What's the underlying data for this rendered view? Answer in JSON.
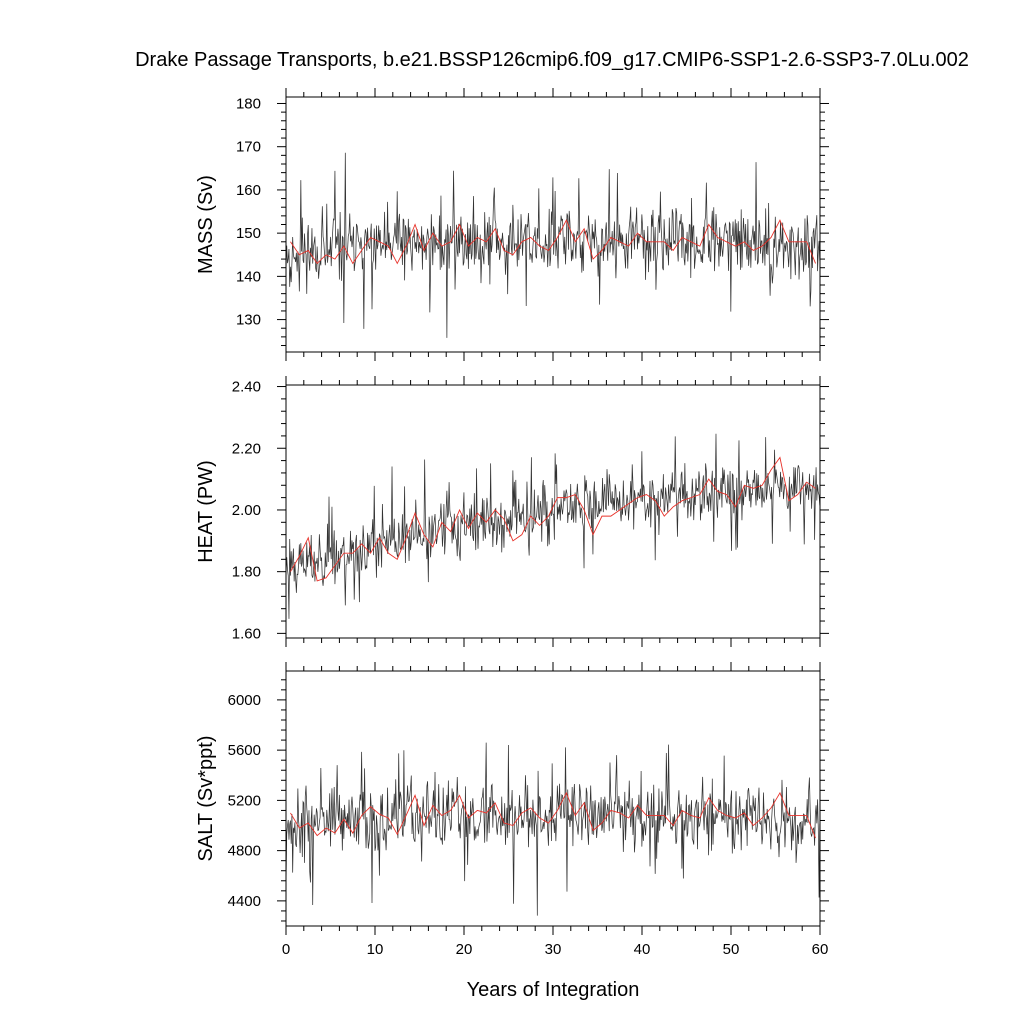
{
  "title": "Drake Passage Transports, b.e21.BSSP126cmip6.f09_g17.CMIP6-SSP1-2.6-SSP3-7.0Lu.002",
  "xlabel": "Years of Integration",
  "colors": {
    "monthly": "#333333",
    "annual": "#e8322a",
    "frame": "#000000"
  },
  "chart_data": [
    {
      "type": "line",
      "panel": "mass",
      "ylabel": "MASS (Sv)",
      "xlim": [
        0,
        60
      ],
      "ylim": [
        122.5,
        181.5
      ],
      "xticks": [
        0,
        10,
        20,
        30,
        40,
        50,
        60
      ],
      "yticks": [
        130,
        140,
        150,
        160,
        170,
        180
      ],
      "ytick_labels": [
        "130",
        "140",
        "150",
        "160",
        "170",
        "180"
      ],
      "series": [
        {
          "style": "monthly",
          "x_step": 0.0833,
          "noise": 7.5,
          "spike_chance": 0.06,
          "spike_amp": 14,
          "seed": 11,
          "x": [
            0,
            10,
            20,
            30,
            40,
            50,
            60
          ],
          "values": [
            146,
            147,
            148,
            148,
            148,
            148,
            146
          ]
        },
        {
          "style": "annual",
          "x": [
            0.5,
            1.5,
            2.5,
            3.5,
            4.5,
            5.5,
            6.5,
            7.5,
            8.5,
            9.5,
            10.5,
            11.5,
            12.5,
            13.5,
            14.5,
            15.5,
            16.5,
            17.5,
            18.5,
            19.5,
            20.5,
            21.5,
            22.5,
            23.5,
            24.5,
            25.5,
            26.5,
            27.5,
            28.5,
            29.5,
            30.5,
            31.5,
            32.5,
            33.5,
            34.5,
            35.5,
            36.5,
            37.5,
            38.5,
            39.5,
            40.5,
            41.5,
            42.5,
            43.5,
            44.5,
            45.5,
            46.5,
            47.5,
            48.5,
            49.5,
            50.5,
            51.5,
            52.5,
            53.5,
            54.5,
            55.5,
            56.5,
            57.5,
            58.5,
            59.5
          ],
          "values": [
            148,
            145,
            146,
            143,
            145,
            144,
            147,
            143,
            146,
            149,
            148,
            147,
            143,
            147,
            152,
            146,
            150,
            147,
            148,
            152,
            147,
            149,
            148,
            151,
            146,
            145,
            148,
            149,
            147,
            146,
            149,
            153,
            148,
            151,
            144,
            146,
            149,
            148,
            147,
            150,
            148,
            148,
            148,
            146,
            149,
            148,
            147,
            152,
            149,
            148,
            147,
            148,
            146,
            147,
            149,
            153,
            148,
            148,
            148,
            143
          ]
        }
      ]
    },
    {
      "type": "line",
      "panel": "heat",
      "ylabel": "HEAT (PW)",
      "xlim": [
        0,
        60
      ],
      "ylim": [
        1.585,
        2.405
      ],
      "xticks": [
        0,
        10,
        20,
        30,
        40,
        50,
        60
      ],
      "yticks": [
        1.6,
        1.8,
        2.0,
        2.2,
        2.4
      ],
      "ytick_labels": [
        "1.60",
        "1.80",
        "2.00",
        "2.20",
        "2.40"
      ],
      "series": [
        {
          "style": "monthly",
          "x_step": 0.0833,
          "noise": 0.09,
          "spike_chance": 0.05,
          "spike_amp": 0.16,
          "seed": 23,
          "x": [
            0,
            10,
            20,
            30,
            40,
            50,
            60
          ],
          "values": [
            1.82,
            1.88,
            1.95,
            2.0,
            2.03,
            2.07,
            2.08
          ]
        },
        {
          "style": "annual",
          "x": [
            0.5,
            1.5,
            2.5,
            3.5,
            4.5,
            5.5,
            6.5,
            7.5,
            8.5,
            9.5,
            10.5,
            11.5,
            12.5,
            13.5,
            14.5,
            15.5,
            16.5,
            17.5,
            18.5,
            19.5,
            20.5,
            21.5,
            22.5,
            23.5,
            24.5,
            25.5,
            26.5,
            27.5,
            28.5,
            29.5,
            30.5,
            31.5,
            32.5,
            33.5,
            34.5,
            35.5,
            36.5,
            37.5,
            38.5,
            39.5,
            40.5,
            41.5,
            42.5,
            43.5,
            44.5,
            45.5,
            46.5,
            47.5,
            48.5,
            49.5,
            50.5,
            51.5,
            52.5,
            53.5,
            54.5,
            55.5,
            56.5,
            57.5,
            58.5,
            59.5
          ],
          "values": [
            1.8,
            1.85,
            1.91,
            1.77,
            1.78,
            1.82,
            1.86,
            1.86,
            1.89,
            1.86,
            1.91,
            1.86,
            1.84,
            1.91,
            1.99,
            1.92,
            1.88,
            1.96,
            1.93,
            2.0,
            1.94,
            1.99,
            1.96,
            2.0,
            1.97,
            1.9,
            1.92,
            1.98,
            1.95,
            1.98,
            2.04,
            2.04,
            2.05,
            2.0,
            1.92,
            1.98,
            1.98,
            2.0,
            2.02,
            2.04,
            2.05,
            2.03,
            1.98,
            2.01,
            2.03,
            2.04,
            2.05,
            2.1,
            2.06,
            2.05,
            2.01,
            2.08,
            2.07,
            2.08,
            2.13,
            2.17,
            2.03,
            2.05,
            2.09,
            2.07
          ]
        }
      ]
    },
    {
      "type": "line",
      "panel": "salt",
      "ylabel": "SALT (Sv*ppt)",
      "xlim": [
        0,
        60
      ],
      "ylim": [
        4200,
        6230
      ],
      "xticks": [
        0,
        10,
        20,
        30,
        40,
        50,
        60
      ],
      "yticks": [
        4400,
        4800,
        5200,
        5600,
        6000
      ],
      "ytick_labels": [
        "4400",
        "4800",
        "5200",
        "5600",
        "6000"
      ],
      "series": [
        {
          "style": "monthly",
          "x_step": 0.0833,
          "noise": 260,
          "spike_chance": 0.06,
          "spike_amp": 480,
          "seed": 37,
          "x": [
            0,
            10,
            20,
            30,
            40,
            50,
            60
          ],
          "values": [
            5020,
            5050,
            5080,
            5090,
            5080,
            5090,
            5020
          ]
        },
        {
          "style": "annual",
          "x": [
            0.5,
            1.5,
            2.5,
            3.5,
            4.5,
            5.5,
            6.5,
            7.5,
            8.5,
            9.5,
            10.5,
            11.5,
            12.5,
            13.5,
            14.5,
            15.5,
            16.5,
            17.5,
            18.5,
            19.5,
            20.5,
            21.5,
            22.5,
            23.5,
            24.5,
            25.5,
            26.5,
            27.5,
            28.5,
            29.5,
            30.5,
            31.5,
            32.5,
            33.5,
            34.5,
            35.5,
            36.5,
            37.5,
            38.5,
            39.5,
            40.5,
            41.5,
            42.5,
            43.5,
            44.5,
            45.5,
            46.5,
            47.5,
            48.5,
            49.5,
            50.5,
            51.5,
            52.5,
            53.5,
            54.5,
            55.5,
            56.5,
            57.5,
            58.5,
            59.5
          ],
          "values": [
            5100,
            4980,
            5020,
            4920,
            4980,
            4940,
            5050,
            4940,
            5080,
            5150,
            5090,
            5060,
            4930,
            5080,
            5240,
            5000,
            5160,
            5080,
            5120,
            5240,
            5060,
            5120,
            5100,
            5180,
            5020,
            5000,
            5100,
            5140,
            5060,
            5020,
            5120,
            5260,
            5080,
            5180,
            4960,
            5020,
            5120,
            5100,
            5060,
            5160,
            5080,
            5080,
            5080,
            5000,
            5120,
            5080,
            5060,
            5220,
            5120,
            5080,
            5060,
            5100,
            5000,
            5060,
            5140,
            5260,
            5080,
            5080,
            5080,
            4900
          ]
        }
      ]
    }
  ]
}
